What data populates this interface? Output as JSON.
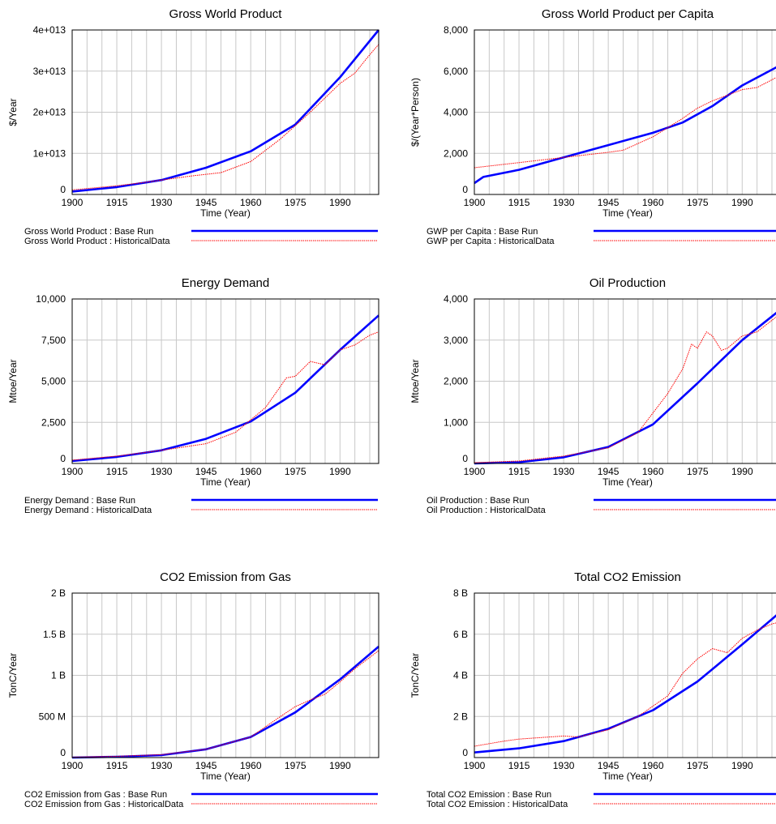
{
  "colors": {
    "base": "#0000ff",
    "historical": "#ff0000",
    "grid": "#c8c8c8"
  },
  "chart_data": [
    {
      "type": "line",
      "title": "Gross World Product",
      "xlabel": "Time (Year)",
      "ylabel": "$/Year",
      "xlim": [
        1900,
        2003
      ],
      "ylim": [
        0,
        40000000000000
      ],
      "x_ticks": [
        "1900",
        "1915",
        "1930",
        "1945",
        "1960",
        "1975",
        "1990"
      ],
      "y_ticks": [
        "0",
        "1e+013",
        "2e+013",
        "3e+013",
        "4e+013"
      ],
      "grid": true,
      "legend_position": "bottom",
      "series": [
        {
          "name": "Gross World Product : Base Run",
          "style": "base",
          "points": [
            [
              1900,
              700000000000
            ],
            [
              1915,
              1800000000000
            ],
            [
              1930,
              3500000000000
            ],
            [
              1945,
              6500000000000
            ],
            [
              1960,
              10500000000000
            ],
            [
              1975,
              17000000000000
            ],
            [
              1990,
              28500000000000
            ],
            [
              2003,
              40000000000000
            ]
          ]
        },
        {
          "name": "Gross World Product : HistoricalData",
          "style": "historical",
          "points": [
            [
              1900,
              1100000000000
            ],
            [
              1915,
              2100000000000
            ],
            [
              1925,
              3000000000000
            ],
            [
              1940,
              4500000000000
            ],
            [
              1950,
              5300000000000
            ],
            [
              1960,
              8000000000000
            ],
            [
              1970,
              13500000000000
            ],
            [
              1980,
              20000000000000
            ],
            [
              1990,
              27000000000000
            ],
            [
              1995,
              29500000000000
            ],
            [
              2000,
              34000000000000
            ],
            [
              2003,
              36500000000000
            ]
          ]
        }
      ]
    },
    {
      "type": "line",
      "title": "Gross World Product per Capita",
      "xlabel": "Time (Year)",
      "ylabel": "$/(Year*Person)",
      "xlim": [
        1900,
        2003
      ],
      "ylim": [
        0,
        8000
      ],
      "x_ticks": [
        "1900",
        "1915",
        "1930",
        "1945",
        "1960",
        "1975",
        "1990"
      ],
      "y_ticks": [
        "0",
        "2,000",
        "4,000",
        "6,000",
        "8,000"
      ],
      "grid": true,
      "legend_position": "bottom",
      "series": [
        {
          "name": "GWP per Capita : Base Run",
          "style": "base",
          "points": [
            [
              1900,
              550
            ],
            [
              1903,
              850
            ],
            [
              1915,
              1200
            ],
            [
              1930,
              1800
            ],
            [
              1945,
              2400
            ],
            [
              1960,
              3000
            ],
            [
              1970,
              3500
            ],
            [
              1980,
              4300
            ],
            [
              1990,
              5300
            ],
            [
              2003,
              6300
            ]
          ]
        },
        {
          "name": "GWP per Capita : HistoricalData",
          "style": "historical",
          "points": [
            [
              1900,
              1300
            ],
            [
              1915,
              1550
            ],
            [
              1930,
              1800
            ],
            [
              1945,
              2050
            ],
            [
              1950,
              2150
            ],
            [
              1960,
              2800
            ],
            [
              1970,
              3700
            ],
            [
              1975,
              4200
            ],
            [
              1980,
              4550
            ],
            [
              1990,
              5100
            ],
            [
              1995,
              5200
            ],
            [
              2003,
              5800
            ]
          ]
        }
      ]
    },
    {
      "type": "line",
      "title": "Energy Demand",
      "xlabel": "Time (Year)",
      "ylabel": "Mtoe/Year",
      "xlim": [
        1900,
        2003
      ],
      "ylim": [
        0,
        10000
      ],
      "x_ticks": [
        "1900",
        "1915",
        "1930",
        "1945",
        "1960",
        "1975",
        "1990"
      ],
      "y_ticks": [
        "0",
        "2,500",
        "5,000",
        "7,500",
        "10,000"
      ],
      "grid": true,
      "legend_position": "bottom",
      "series": [
        {
          "name": "Energy Demand : Base Run",
          "style": "base",
          "points": [
            [
              1900,
              150
            ],
            [
              1915,
              400
            ],
            [
              1930,
              800
            ],
            [
              1945,
              1500
            ],
            [
              1960,
              2550
            ],
            [
              1975,
              4300
            ],
            [
              1990,
              6900
            ],
            [
              2003,
              9000
            ]
          ]
        },
        {
          "name": "Energy Demand : HistoricalData",
          "style": "historical",
          "points": [
            [
              1900,
              200
            ],
            [
              1915,
              450
            ],
            [
              1930,
              800
            ],
            [
              1945,
              1200
            ],
            [
              1955,
              1900
            ],
            [
              1965,
              3400
            ],
            [
              1972,
              5200
            ],
            [
              1975,
              5300
            ],
            [
              1980,
              6200
            ],
            [
              1985,
              6000
            ],
            [
              1990,
              6900
            ],
            [
              1995,
              7200
            ],
            [
              2000,
              7800
            ],
            [
              2003,
              8000
            ]
          ]
        }
      ]
    },
    {
      "type": "line",
      "title": "Oil Production",
      "xlabel": "Time (Year)",
      "ylabel": "Mtoe/Year",
      "xlim": [
        1900,
        2003
      ],
      "ylim": [
        0,
        4000
      ],
      "x_ticks": [
        "1900",
        "1915",
        "1930",
        "1945",
        "1960",
        "1975",
        "1990"
      ],
      "y_ticks": [
        "0",
        "1,000",
        "2,000",
        "3,000",
        "4,000"
      ],
      "grid": true,
      "legend_position": "bottom",
      "series": [
        {
          "name": "Oil Production : Base Run",
          "style": "base",
          "points": [
            [
              1900,
              0
            ],
            [
              1915,
              30
            ],
            [
              1930,
              150
            ],
            [
              1945,
              400
            ],
            [
              1960,
              950
            ],
            [
              1975,
              1950
            ],
            [
              1990,
              3000
            ],
            [
              2003,
              3750
            ]
          ]
        },
        {
          "name": "Oil Production : HistoricalData",
          "style": "historical",
          "points": [
            [
              1900,
              20
            ],
            [
              1915,
              60
            ],
            [
              1930,
              180
            ],
            [
              1945,
              380
            ],
            [
              1955,
              750
            ],
            [
              1965,
              1700
            ],
            [
              1970,
              2300
            ],
            [
              1973,
              2900
            ],
            [
              1975,
              2800
            ],
            [
              1978,
              3200
            ],
            [
              1980,
              3100
            ],
            [
              1983,
              2750
            ],
            [
              1985,
              2800
            ],
            [
              1990,
              3100
            ],
            [
              1995,
              3200
            ],
            [
              2003,
              3650
            ]
          ]
        }
      ]
    },
    {
      "type": "line",
      "title": "CO2 Emission from Gas",
      "xlabel": "Time (Year)",
      "ylabel": "TonC/Year",
      "xlim": [
        1900,
        2003
      ],
      "ylim": [
        0,
        2000000000
      ],
      "x_ticks": [
        "1900",
        "1915",
        "1930",
        "1945",
        "1960",
        "1975",
        "1990"
      ],
      "y_ticks": [
        "0",
        "500 M",
        "1 B",
        "1.5 B",
        "2 B"
      ],
      "grid": true,
      "legend_position": "bottom",
      "series": [
        {
          "name": "CO2 Emission from Gas : Base Run",
          "style": "base",
          "points": [
            [
              1900,
              0
            ],
            [
              1915,
              10000000
            ],
            [
              1930,
              30000000
            ],
            [
              1945,
              100000000
            ],
            [
              1960,
              250000000
            ],
            [
              1975,
              550000000
            ],
            [
              1990,
              950000000
            ],
            [
              2003,
              1350000000
            ]
          ]
        },
        {
          "name": "CO2 Emission from Gas : HistoricalData",
          "style": "historical",
          "points": [
            [
              1900,
              5000000
            ],
            [
              1915,
              15000000
            ],
            [
              1930,
              35000000
            ],
            [
              1945,
              100000000
            ],
            [
              1960,
              250000000
            ],
            [
              1970,
              500000000
            ],
            [
              1975,
              620000000
            ],
            [
              1980,
              700000000
            ],
            [
              1985,
              770000000
            ],
            [
              1990,
              920000000
            ],
            [
              1995,
              1080000000
            ],
            [
              2003,
              1300000000
            ]
          ]
        }
      ]
    },
    {
      "type": "line",
      "title": "Total CO2 Emission",
      "xlabel": "Time (Year)",
      "ylabel": "TonC/Year",
      "xlim": [
        1900,
        2003
      ],
      "ylim": [
        0,
        8000000000
      ],
      "x_ticks": [
        "1900",
        "1915",
        "1930",
        "1945",
        "1960",
        "1975",
        "1990"
      ],
      "y_ticks": [
        "0",
        "2 B",
        "4 B",
        "6 B",
        "8 B"
      ],
      "grid": true,
      "legend_position": "bottom",
      "series": [
        {
          "name": "Total CO2 Emission : Base Run",
          "style": "base",
          "points": [
            [
              1900,
              250000000
            ],
            [
              1915,
              450000000
            ],
            [
              1930,
              800000000
            ],
            [
              1945,
              1400000000
            ],
            [
              1960,
              2300000000
            ],
            [
              1975,
              3700000000
            ],
            [
              1990,
              5500000000
            ],
            [
              2003,
              7100000000
            ]
          ]
        },
        {
          "name": "Total CO2 Emission : HistoricalData",
          "style": "historical",
          "points": [
            [
              1900,
              550000000
            ],
            [
              1910,
              800000000
            ],
            [
              1915,
              900000000
            ],
            [
              1920,
              950000000
            ],
            [
              1930,
              1050000000
            ],
            [
              1935,
              1000000000
            ],
            [
              1945,
              1350000000
            ],
            [
              1955,
              2000000000
            ],
            [
              1965,
              3000000000
            ],
            [
              1970,
              4100000000
            ],
            [
              1975,
              4800000000
            ],
            [
              1980,
              5300000000
            ],
            [
              1985,
              5100000000
            ],
            [
              1990,
              5800000000
            ],
            [
              1995,
              6200000000
            ],
            [
              2000,
              6500000000
            ],
            [
              2003,
              6600000000
            ]
          ]
        }
      ]
    }
  ]
}
